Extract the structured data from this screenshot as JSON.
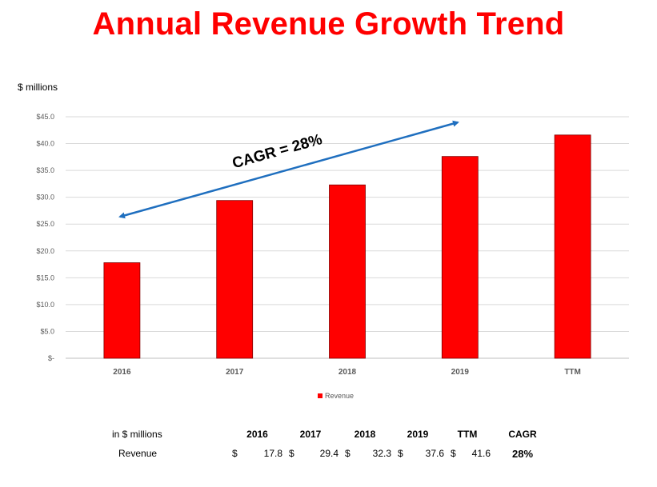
{
  "title": "Annual Revenue Growth Trend",
  "unit_label": "$ millions",
  "chart_data": {
    "type": "bar",
    "categories": [
      "2016",
      "2017",
      "2018",
      "2019",
      "TTM"
    ],
    "series": [
      {
        "name": "Revenue",
        "values": [
          17.8,
          29.4,
          32.3,
          37.6,
          41.6
        ],
        "color": "#ff0000"
      }
    ],
    "ylim": [
      0,
      45
    ],
    "yticks": [
      0,
      5,
      10,
      15,
      20,
      25,
      30,
      35,
      40,
      45
    ],
    "ytick_labels": [
      "$-",
      "$5.0",
      "$10.0",
      "$15.0",
      "$20.0",
      "$25.0",
      "$30.0",
      "$35.0",
      "$40.0",
      "$45.0"
    ],
    "ylabel": "$ millions",
    "grid": true,
    "legend_position": "bottom",
    "annotation": {
      "text": "CAGR = 28%",
      "arrow_color": "#1f6fbf"
    }
  },
  "summary_table": {
    "unit_label": "in $ millions",
    "headers": [
      "2016",
      "2017",
      "2018",
      "2019",
      "TTM",
      "CAGR"
    ],
    "row_label": "Revenue",
    "currency_symbol": "$",
    "values": [
      "17.8",
      "29.4",
      "32.3",
      "37.6",
      "41.6"
    ],
    "cagr": "28%"
  }
}
